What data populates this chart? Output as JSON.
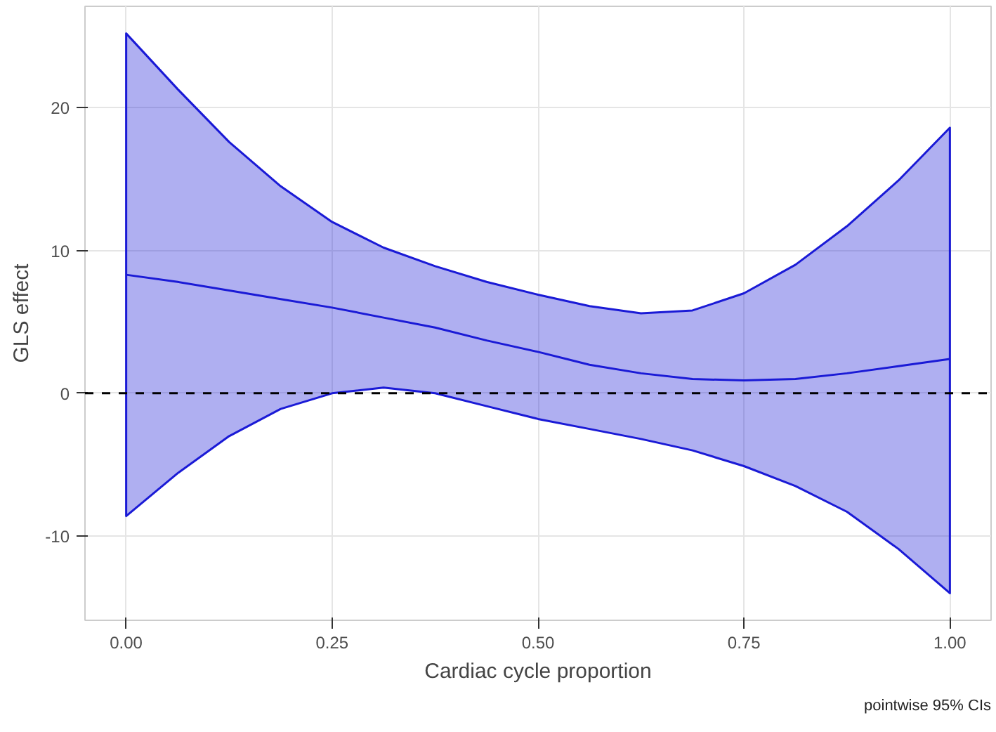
{
  "chart_data": {
    "type": "line",
    "xlabel": "Cardiac cycle proportion",
    "ylabel": "GLS effect",
    "x": [
      0,
      0.0625,
      0.125,
      0.1875,
      0.25,
      0.3125,
      0.375,
      0.4375,
      0.5,
      0.5625,
      0.625,
      0.6875,
      0.75,
      0.8125,
      0.875,
      0.9375,
      1
    ],
    "series": [
      {
        "color": "#1a1ad6",
        "values": [
          8.3,
          7.8,
          7.2,
          6.6,
          6.0,
          5.3,
          4.6,
          3.7,
          2.9,
          2.0,
          1.4,
          1.0,
          0.9,
          1.0,
          1.4,
          1.9,
          2.4
        ],
        "lower": [
          -8.6,
          -5.6,
          -3.0,
          -1.1,
          0.0,
          0.4,
          0.0,
          -0.9,
          -1.8,
          -2.5,
          -3.2,
          -4.0,
          -5.1,
          -6.5,
          -8.3,
          -10.9,
          -14.0
        ],
        "upper": [
          25.2,
          21.3,
          17.6,
          14.5,
          12.0,
          10.2,
          8.9,
          7.8,
          6.9,
          6.1,
          5.6,
          5.8,
          7.0,
          9.0,
          11.7,
          14.9,
          18.6
        ]
      }
    ],
    "xlim": [
      -0.05,
      1.05
    ],
    "ylim": [
      -15.9,
      27.1
    ],
    "xticks": [
      {
        "value": 0,
        "label": "0.00"
      },
      0.25,
      {
        "value": 0.5,
        "label": "0.50"
      },
      0.75,
      {
        "value": 1,
        "label": "1.00"
      }
    ],
    "yticks": [
      -10,
      0,
      10,
      20
    ],
    "ref_lines": [
      {
        "axis": "y",
        "value": 0,
        "color": "#000000",
        "line_style": "dashed"
      }
    ],
    "annotations": [
      "pointwise 95% CIs"
    ],
    "grid": true,
    "line_style": "solid"
  }
}
